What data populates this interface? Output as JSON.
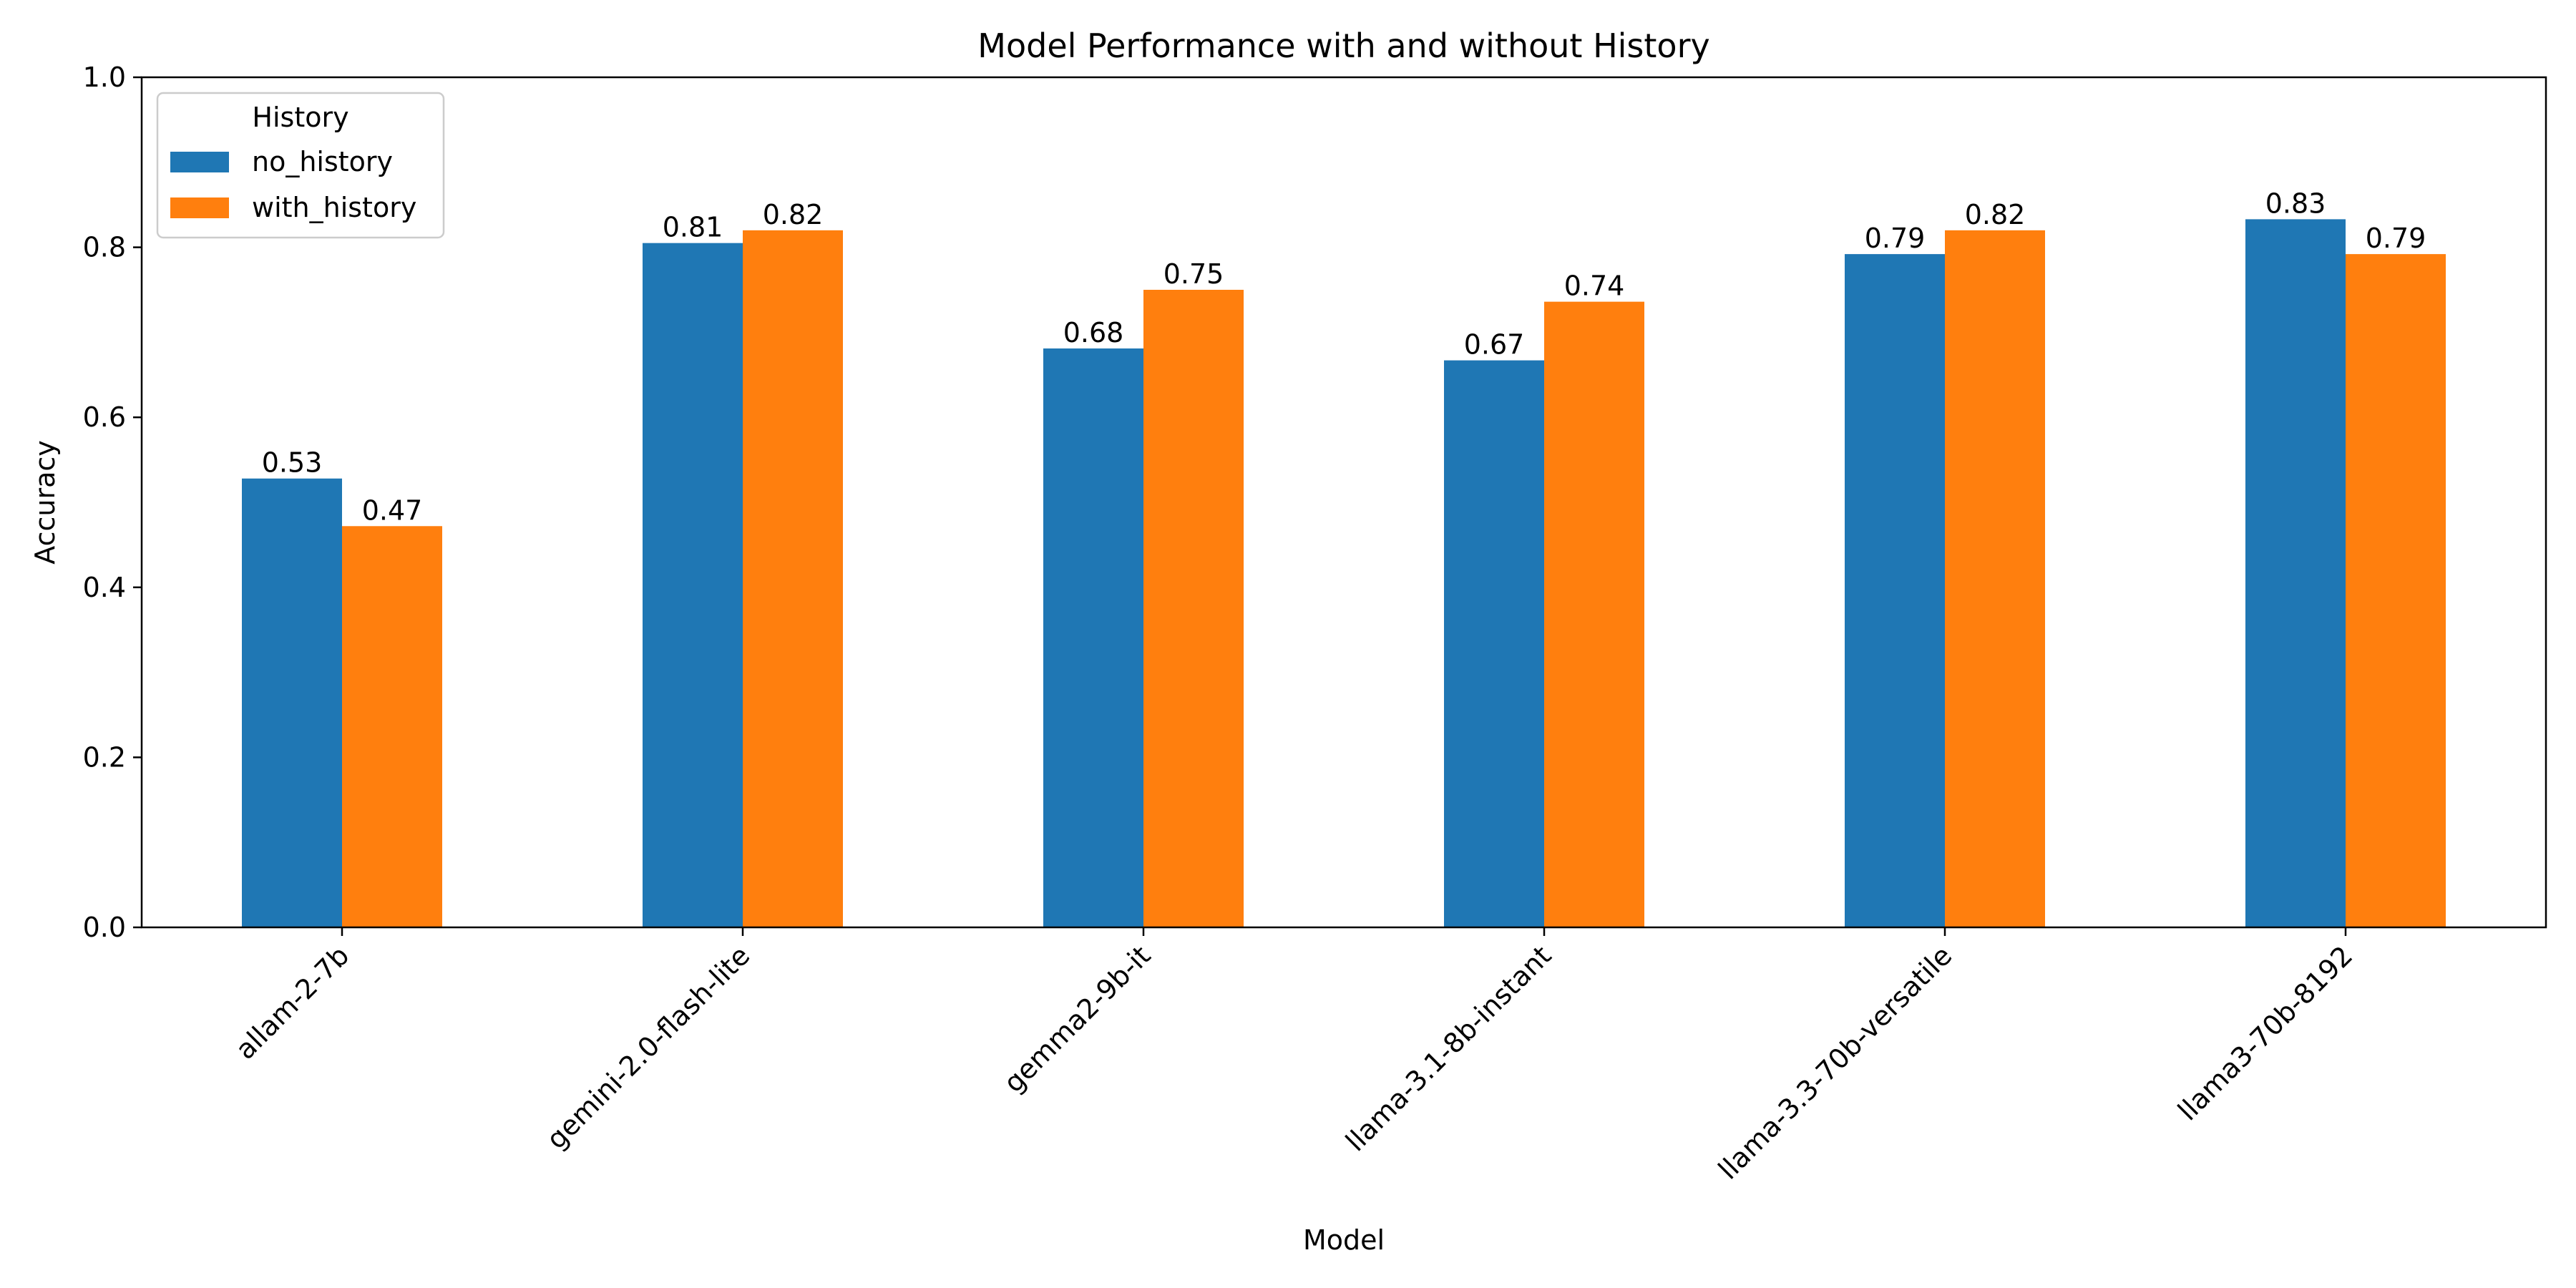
{
  "chart_data": {
    "type": "bar",
    "title": "Model Performance with and without History",
    "xlabel": "Model",
    "ylabel": "Accuracy",
    "ylim": [
      0,
      1.0
    ],
    "yticks": [
      "0.0",
      "0.2",
      "0.4",
      "0.6",
      "0.8",
      "1.0"
    ],
    "categories": [
      "allam-2-7b",
      "gemini-2.0-flash-lite",
      "gemma2-9b-it",
      "llama-3.1-8b-instant",
      "llama-3.3-70b-versatile",
      "llama3-70b-8192"
    ],
    "series": [
      {
        "name": "no_history",
        "color": "#1f77b4",
        "values": [
          0.528,
          0.805,
          0.681,
          0.667,
          0.792,
          0.833
        ],
        "labels": [
          "0.53",
          "0.81",
          "0.68",
          "0.67",
          "0.79",
          "0.83"
        ]
      },
      {
        "name": "with_history",
        "color": "#ff7f0e",
        "values": [
          0.472,
          0.82,
          0.75,
          0.736,
          0.82,
          0.792
        ],
        "labels": [
          "0.47",
          "0.82",
          "0.75",
          "0.74",
          "0.82",
          "0.79"
        ]
      }
    ],
    "legend": {
      "title": "History",
      "placement": "top-left"
    },
    "grid": false
  }
}
